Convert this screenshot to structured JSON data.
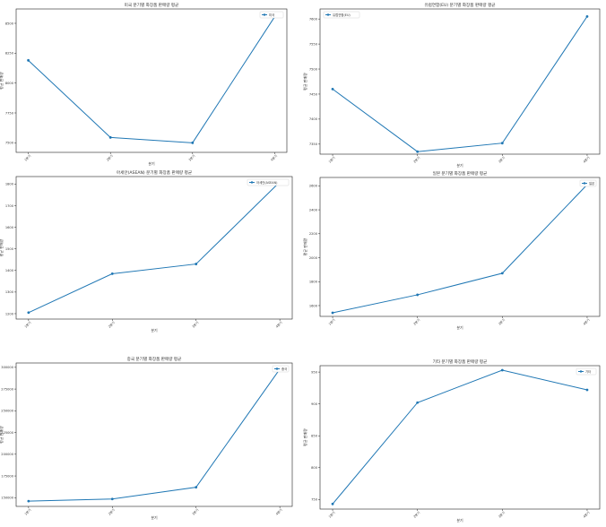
{
  "chart_data": [
    {
      "type": "line",
      "title": "미국 분기별 화장품 판매량 평균",
      "xlabel": "분기",
      "ylabel": "평균 판매량",
      "categories": [
        "1분기",
        "2분기",
        "3분기",
        "4분기"
      ],
      "yticks": [
        "7500",
        "7750",
        "8000",
        "8250",
        "8500"
      ],
      "ylim": [
        7420,
        8620
      ],
      "series": [
        {
          "name": "미국",
          "values": [
            8190,
            7545,
            7500,
            8555
          ]
        }
      ],
      "legend": "top-right",
      "grid": false,
      "color": "#1f77b4"
    },
    {
      "type": "line",
      "title": "유럽연합(EU) 분기별 화장품 판매량 평균",
      "xlabel": "분기",
      "ylabel": "평균 판매량",
      "categories": [
        "1분기",
        "2분기",
        "3분기",
        "4분기"
      ],
      "yticks": [
        "7350",
        "7400",
        "7450",
        "7500",
        "7550",
        "7600"
      ],
      "ylim": [
        7330,
        7620
      ],
      "series": [
        {
          "name": "유럽연합(EU)",
          "values": [
            7460,
            7335,
            7352,
            7605
          ]
        }
      ],
      "legend": "top-left",
      "grid": false,
      "color": "#1f77b4"
    },
    {
      "type": "line",
      "title": "아세안(ASEAN) 분기별 화장품 판매량 평균",
      "xlabel": "분기",
      "ylabel": "평균 판매량",
      "categories": [
        "1분기",
        "2분기",
        "3분기",
        "4분기"
      ],
      "yticks": [
        "1200",
        "1300",
        "1400",
        "1500",
        "1600",
        "1700",
        "1800"
      ],
      "ylim": [
        1175,
        1835
      ],
      "series": [
        {
          "name": "아세안(ASEAN)",
          "values": [
            1205,
            1385,
            1430,
            1810
          ]
        }
      ],
      "legend": "top-right",
      "grid": false,
      "color": "#1f77b4"
    },
    {
      "type": "line",
      "title": "일본 분기별 화장품 판매량 평균",
      "xlabel": "분기",
      "ylabel": "평균 판매량",
      "categories": [
        "1분기",
        "2분기",
        "3분기",
        "4분기"
      ],
      "yticks": [
        "1600",
        "1800",
        "2000",
        "2200",
        "2400",
        "2600"
      ],
      "ylim": [
        1510,
        2670
      ],
      "series": [
        {
          "name": "일본",
          "values": [
            1540,
            1690,
            1870,
            2610
          ]
        }
      ],
      "legend": "top-right",
      "grid": false,
      "color": "#1f77b4"
    },
    {
      "type": "line",
      "title": "중국 분기별 화장품 판매량 평균",
      "xlabel": "분기",
      "ylabel": "평균 판매량",
      "categories": [
        "1분기",
        "2분기",
        "3분기",
        "4분기"
      ],
      "yticks": [
        "150000",
        "175000",
        "200000",
        "225000",
        "250000",
        "275000",
        "300000"
      ],
      "ylim": [
        140000,
        305000
      ],
      "series": [
        {
          "name": "중국",
          "values": [
            146000,
            148500,
            162000,
            298000
          ]
        }
      ],
      "legend": "top-right",
      "grid": false,
      "color": "#1f77b4"
    },
    {
      "type": "line",
      "title": "기타 분기별 화장품 판매량 평균",
      "xlabel": "분기",
      "ylabel": "평균 판매량",
      "categories": [
        "1분기",
        "2분기",
        "3분기",
        "4분기"
      ],
      "yticks": [
        "750",
        "800",
        "850",
        "900",
        "950"
      ],
      "ylim": [
        735,
        960
      ],
      "series": [
        {
          "name": "기타",
          "values": [
            743,
            902,
            953,
            922
          ]
        }
      ],
      "legend": "top-right",
      "grid": false,
      "color": "#1f77b4"
    }
  ]
}
